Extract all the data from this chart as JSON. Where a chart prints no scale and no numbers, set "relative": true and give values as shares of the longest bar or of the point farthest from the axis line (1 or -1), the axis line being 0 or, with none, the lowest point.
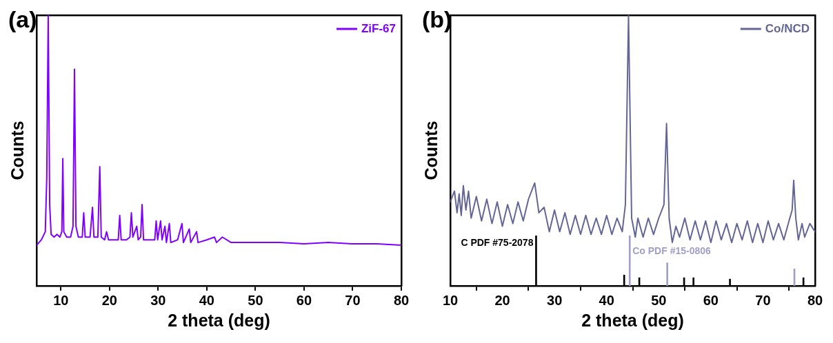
{
  "chart_data": [
    {
      "type": "line",
      "title": "(a)",
      "xlabel": "2 theta (deg)",
      "ylabel": "Counts",
      "relative": true,
      "xlim": [
        5,
        80
      ],
      "xticks": [
        10,
        20,
        30,
        40,
        50,
        60,
        70,
        80
      ],
      "grid": false,
      "legend": "top right",
      "marker": "none",
      "line_style": "solid",
      "series": [
        {
          "name": "ZiF-67",
          "color": "#8000ff",
          "x": [
            5,
            6,
            6.8,
            7.1,
            7.4,
            7.7,
            8,
            8.6,
            9.2,
            9.8,
            10.2,
            10.4,
            10.6,
            11.2,
            12,
            12.5,
            12.8,
            13.1,
            13.6,
            14.4,
            14.7,
            15,
            16,
            16.5,
            16.8,
            17.6,
            18,
            18.3,
            19,
            19.4,
            19.8,
            21,
            21.8,
            22.1,
            22.4,
            23.5,
            24.2,
            24.5,
            24.8,
            25.6,
            25.9,
            26.4,
            26.7,
            27,
            28,
            29.3,
            29.6,
            29.9,
            30.5,
            30.8,
            31.4,
            31.7,
            32.3,
            32.6,
            34,
            34.9,
            35.2,
            36.4,
            36.7,
            37.9,
            38.2,
            40,
            41.6,
            42,
            43.2,
            45,
            50,
            55,
            60,
            65,
            70,
            75,
            80
          ],
          "values": [
            0.15,
            0.17,
            0.2,
            0.4,
            1.0,
            0.3,
            0.19,
            0.18,
            0.19,
            0.18,
            0.2,
            0.47,
            0.2,
            0.18,
            0.18,
            0.22,
            0.8,
            0.22,
            0.18,
            0.18,
            0.27,
            0.18,
            0.18,
            0.29,
            0.18,
            0.18,
            0.44,
            0.18,
            0.17,
            0.2,
            0.17,
            0.17,
            0.17,
            0.26,
            0.17,
            0.17,
            0.18,
            0.27,
            0.18,
            0.22,
            0.17,
            0.18,
            0.3,
            0.17,
            0.17,
            0.17,
            0.24,
            0.17,
            0.24,
            0.17,
            0.22,
            0.16,
            0.23,
            0.16,
            0.17,
            0.23,
            0.16,
            0.21,
            0.16,
            0.2,
            0.16,
            0.17,
            0.18,
            0.16,
            0.18,
            0.16,
            0.16,
            0.16,
            0.155,
            0.16,
            0.155,
            0.155,
            0.15
          ]
        }
      ]
    },
    {
      "type": "line",
      "title": "(b)",
      "xlabel": "2 theta (deg)",
      "ylabel": "Counts",
      "relative": true,
      "xlim": [
        10,
        80
      ],
      "xticks": [
        10,
        20,
        30,
        40,
        50,
        60,
        70,
        80
      ],
      "grid": false,
      "legend": "top right",
      "marker": "none",
      "line_style": "solid",
      "series": [
        {
          "name": "Co/NCD",
          "color": "#636594",
          "x": [
            10,
            10.8,
            11.3,
            11.7,
            12.1,
            12.5,
            13,
            13.5,
            14,
            15,
            16,
            17,
            18,
            19,
            20,
            21,
            22,
            23,
            24,
            25,
            26.2,
            27,
            28,
            29,
            30,
            31,
            32,
            33,
            34,
            35,
            36,
            37,
            38,
            39,
            40,
            41,
            42,
            43,
            43.6,
            44.2,
            44.8,
            45.5,
            46,
            47,
            48,
            49,
            50,
            51,
            51.5,
            52,
            52.6,
            53.3,
            54,
            55,
            56,
            57,
            58,
            59,
            60,
            61,
            62,
            63,
            64,
            65,
            66,
            67,
            68,
            69,
            70,
            71,
            72,
            73,
            74,
            75,
            75.6,
            75.9,
            76.3,
            76.8,
            77.5,
            78,
            79,
            80
          ],
          "values": [
            0.31,
            0.35,
            0.27,
            0.34,
            0.26,
            0.37,
            0.28,
            0.35,
            0.25,
            0.33,
            0.24,
            0.32,
            0.23,
            0.31,
            0.22,
            0.3,
            0.23,
            0.31,
            0.24,
            0.32,
            0.38,
            0.27,
            0.29,
            0.2,
            0.28,
            0.2,
            0.27,
            0.19,
            0.26,
            0.19,
            0.26,
            0.19,
            0.25,
            0.19,
            0.26,
            0.19,
            0.25,
            0.2,
            0.3,
            1.0,
            0.25,
            0.18,
            0.25,
            0.18,
            0.25,
            0.19,
            0.25,
            0.3,
            0.6,
            0.25,
            0.16,
            0.22,
            0.18,
            0.25,
            0.17,
            0.24,
            0.17,
            0.24,
            0.16,
            0.24,
            0.17,
            0.23,
            0.16,
            0.23,
            0.17,
            0.24,
            0.16,
            0.23,
            0.16,
            0.24,
            0.17,
            0.23,
            0.17,
            0.24,
            0.28,
            0.39,
            0.25,
            0.17,
            0.23,
            0.18,
            0.23,
            0.2
          ]
        },
        {
          "type": "bar",
          "name": "C PDF #75-2078",
          "color": "#000000",
          "x": [
            26.6,
            43.5,
            46.4,
            55.0,
            56.8,
            63.8,
            77.9
          ],
          "values": [
            0.185,
            0.04,
            0.03,
            0.03,
            0.03,
            0.025,
            0.03
          ]
        },
        {
          "type": "bar",
          "name": "Co PDF #15-0806",
          "color": "#a09fc8",
          "x": [
            44.3,
            51.5,
            75.9
          ],
          "values": [
            0.185,
            0.085,
            0.0625
          ]
        }
      ]
    }
  ]
}
